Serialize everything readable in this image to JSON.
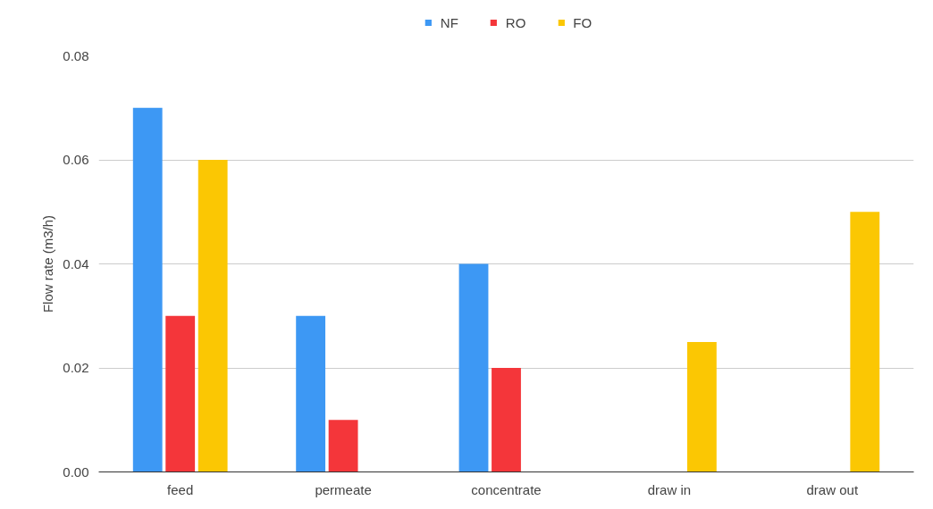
{
  "chart_data": {
    "type": "bar",
    "ylabel": "Flow rate (m3/h)",
    "categories": [
      "feed",
      "permeate",
      "concentrate",
      "draw in",
      "draw out"
    ],
    "series": [
      {
        "name": "NF",
        "color": "#3d98f4",
        "values": [
          0.07,
          0.03,
          0.04,
          null,
          null
        ]
      },
      {
        "name": "RO",
        "color": "#f4363a",
        "values": [
          0.03,
          0.01,
          0.02,
          null,
          null
        ]
      },
      {
        "name": "FO",
        "color": "#fbc703",
        "values": [
          0.06,
          null,
          null,
          0.025,
          0.05
        ]
      }
    ],
    "ylim": [
      0,
      0.08
    ],
    "yticks": [
      {
        "value": 0,
        "label": "0.00"
      },
      0.02,
      0.04,
      0.06,
      0.08
    ],
    "grid": "y",
    "legend": "top"
  }
}
